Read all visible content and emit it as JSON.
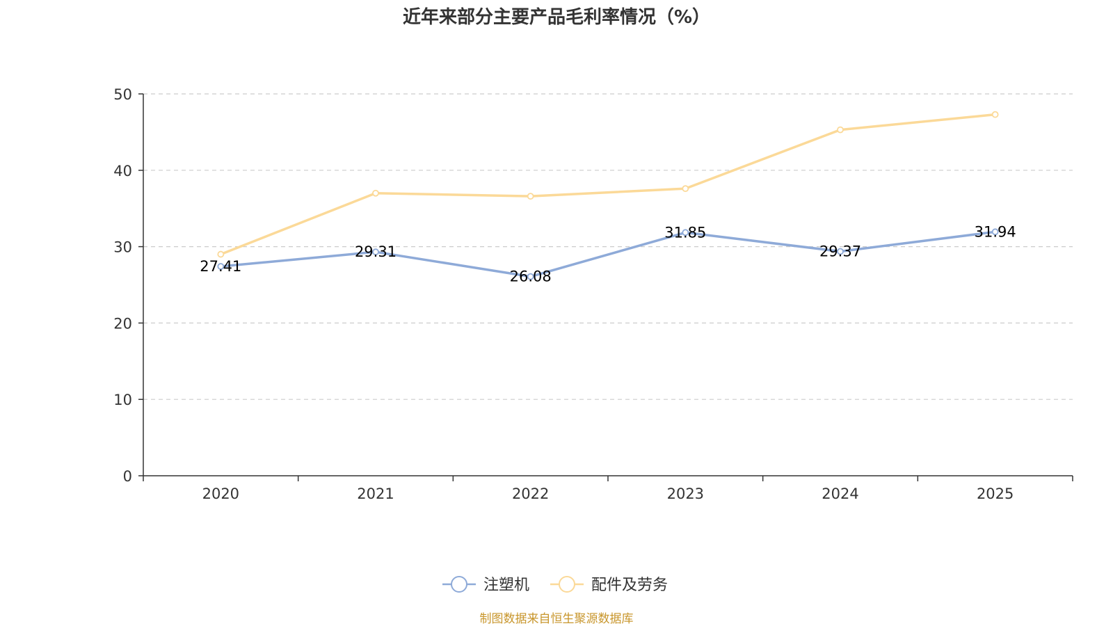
{
  "chart_data": {
    "type": "line",
    "title": "近年来部分主要产品毛利率情况（%）",
    "categories": [
      "2020",
      "2021",
      "2022",
      "2023",
      "2024",
      "2025"
    ],
    "series": [
      {
        "name": "注塑机",
        "values": [
          27.41,
          29.31,
          26.08,
          31.85,
          29.37,
          31.94
        ],
        "labels": [
          "27.41",
          "29.31",
          "26.08",
          "31.85",
          "29.37",
          "31.94"
        ],
        "color": "#8eaad8",
        "show_labels": true
      },
      {
        "name": "配件及劳务",
        "values": [
          29.0,
          37.0,
          36.6,
          37.6,
          45.3,
          47.3
        ],
        "color": "#fbd998",
        "show_labels": false
      }
    ],
    "y_ticks": [
      "0",
      "10",
      "20",
      "30",
      "40",
      "50"
    ],
    "ylim": [
      0,
      50
    ],
    "grid": true,
    "legend": "bottom-center",
    "source": "制图数据来自恒生聚源数据库"
  }
}
